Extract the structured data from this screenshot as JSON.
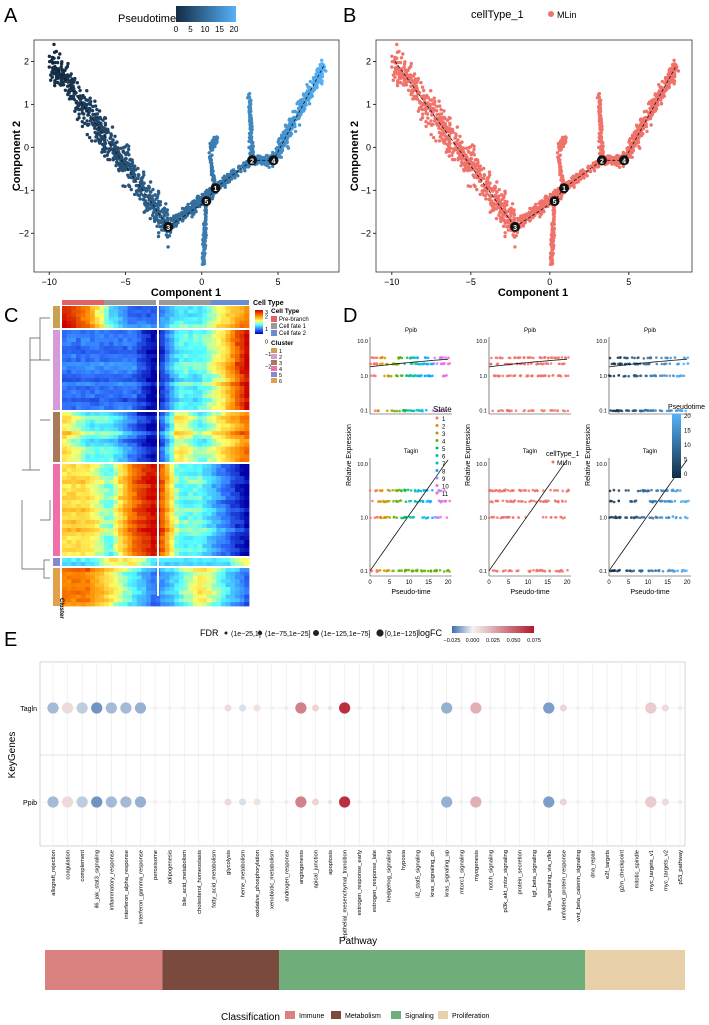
{
  "panels": {
    "A": {
      "letter": "A",
      "legend_title": "Pseudotime",
      "legend_ticks": [
        "0",
        "5",
        "10",
        "15",
        "20"
      ],
      "xlabel": "Component 1",
      "ylabel": "Component 2"
    },
    "B": {
      "letter": "B",
      "legend_title": "cellType_1",
      "legend_entry": "MLin",
      "xlabel": "Component 1",
      "ylabel": "Component 2"
    },
    "C": {
      "letter": "C",
      "celltype_title": "Cell Type",
      "celltype_items": [
        "Pre-branch",
        "Cell fate 1",
        "Cell fate 2"
      ],
      "scale_ticks": [
        "3",
        "2",
        "1",
        "0",
        "−1",
        "−2"
      ],
      "cluster_title": "Cluster",
      "cluster_items": [
        "1",
        "2",
        "3",
        "4",
        "5",
        "6"
      ],
      "cluster_axis": "Cluster"
    },
    "D": {
      "letter": "D",
      "genes": [
        "Ppib",
        "Tagln"
      ],
      "ylabel": "Relative Expression",
      "xlabel": "Pseudo-time",
      "yticks": [
        "10.0",
        "1.0",
        "0.1"
      ],
      "xticks": [
        "0",
        "5",
        "10",
        "15",
        "20"
      ],
      "state_title": "State",
      "state_items": [
        "1",
        "2",
        "3",
        "4",
        "5",
        "6",
        "7",
        "8",
        "9",
        "10",
        "11"
      ],
      "celltype_title": "cellType_1",
      "celltype_entry": "MLin",
      "pseudo_title": "Pseudotime",
      "pseudo_ticks": [
        "20",
        "15",
        "10",
        "5",
        "0"
      ]
    },
    "E": {
      "letter": "E",
      "fdr_title": "FDR",
      "fdr_items": [
        "(1e−25,1]",
        "(1e−75,1e−25]",
        "(1e−125,1e−75]",
        "[0,1e−125]"
      ],
      "logfc_title": "logFC",
      "logfc_ticks": [
        "−0.025",
        "0.000",
        "0.025",
        "0.050",
        "0.075"
      ],
      "ylabel": "KeyGenes",
      "xlabel": "Pathway",
      "genes": [
        "Tagln",
        "Ppib"
      ],
      "classification_title": "Classification",
      "classes": [
        {
          "name": "Immune",
          "color": "#d98280"
        },
        {
          "name": "Metabolism",
          "color": "#7b4a3f"
        },
        {
          "name": "Signaling",
          "color": "#6fae7b"
        },
        {
          "name": "Proliferation",
          "color": "#e8d1a8"
        }
      ]
    }
  },
  "chart_data": [
    {
      "type": "scatter",
      "panel": "A",
      "title": "",
      "xlabel": "Component 1",
      "ylabel": "Component 2",
      "xlim": [
        -11,
        9
      ],
      "ylim": [
        -2.9,
        2.5
      ],
      "xticks": [
        -10,
        -5,
        0,
        5
      ],
      "yticks": [
        -2,
        -1,
        0,
        1,
        2
      ],
      "branch_nodes": [
        {
          "id": "1",
          "x": 0.9,
          "y": -0.95
        },
        {
          "id": "2",
          "x": 3.3,
          "y": -0.3
        },
        {
          "id": "3",
          "x": -2.2,
          "y": -1.85
        },
        {
          "id": "4",
          "x": 4.7,
          "y": -0.3
        },
        {
          "id": "5",
          "x": 0.3,
          "y": -1.25
        }
      ]
    },
    {
      "type": "scatter",
      "panel": "B",
      "title": "",
      "xlabel": "Component 1",
      "ylabel": "Component 2",
      "xlim": [
        -11,
        9
      ],
      "ylim": [
        -2.9,
        2.5
      ],
      "xticks": [
        -10,
        -5,
        0,
        5
      ],
      "yticks": [
        -2,
        -1,
        0,
        1,
        2
      ],
      "series": [
        {
          "name": "MLin",
          "color": "#f0736b"
        }
      ]
    },
    {
      "type": "heatmap",
      "panel": "C",
      "scale": [
        -2,
        3
      ],
      "clusters": 6
    },
    {
      "type": "scatter",
      "panel": "D",
      "genes": [
        "Ppib",
        "Tagln"
      ],
      "xlim": [
        0,
        21
      ],
      "yscale": "log",
      "ylim": [
        0.08,
        13
      ],
      "yticks": [
        0.1,
        1.0,
        10.0
      ],
      "xticks": [
        0,
        5,
        10,
        15,
        20
      ]
    },
    {
      "type": "scatter",
      "panel": "E",
      "title": "",
      "xlabel": "Pathway",
      "ylabel": "KeyGenes",
      "categories": [
        "allograft_rejection",
        "coagulation",
        "complement",
        "il6_jak_stat3_signaling",
        "inflammatory_response",
        "interferon_alpha_response",
        "interferon_gamma_response",
        "peroxisome",
        "adipogenesis",
        "bile_acid_metabolism",
        "cholesterol_homeostasis",
        "fatty_acid_metabolism",
        "glycolysis",
        "heme_metabolism",
        "oxidative_phosphorylation",
        "xenobiotic_metabolism",
        "androgen_response",
        "angiogenesis",
        "apical_junction",
        "apoptosis",
        "epithelial_mesenchymal_transition",
        "estrogen_response_early",
        "estrogen_response_late",
        "hedgehog_signaling",
        "hypoxia",
        "il2_stat5_signaling",
        "kras_signaling_dn",
        "kras_signaling_up",
        "mtorc1_signaling",
        "myogenesis",
        "notch_signaling",
        "pi3k_akt_mtor_signaling",
        "protein_secretion",
        "tgf_beta_signaling",
        "tnfa_signaling_via_nfkb",
        "unfolded_protein_response",
        "wnt_beta_catenin_signaling",
        "dna_repair",
        "e2f_targets",
        "g2m_checkpoint",
        "mitotic_spindle",
        "myc_targets_v1",
        "myc_targets_v2",
        "p53_pathway"
      ],
      "classification": [
        "Immune",
        "Immune",
        "Immune",
        "Immune",
        "Immune",
        "Immune",
        "Immune",
        "Immune",
        "Metabolism",
        "Metabolism",
        "Metabolism",
        "Metabolism",
        "Metabolism",
        "Metabolism",
        "Metabolism",
        "Metabolism",
        "Signaling",
        "Signaling",
        "Signaling",
        "Signaling",
        "Signaling",
        "Signaling",
        "Signaling",
        "Signaling",
        "Signaling",
        "Signaling",
        "Signaling",
        "Signaling",
        "Signaling",
        "Signaling",
        "Signaling",
        "Signaling",
        "Signaling",
        "Signaling",
        "Signaling",
        "Signaling",
        "Signaling",
        "Proliferation",
        "Proliferation",
        "Proliferation",
        "Proliferation",
        "Proliferation",
        "Proliferation",
        "Proliferation"
      ],
      "series": [
        {
          "name": "Tagln",
          "logFC": [
            -0.012,
            0.012,
            -0.008,
            -0.02,
            -0.012,
            -0.012,
            -0.014,
            0.002,
            0.002,
            0.001,
            0.001,
            0.001,
            0.012,
            -0.004,
            0.008,
            0.002,
            0.004,
            0.05,
            0.014,
            0.008,
            0.085,
            0.003,
            0.002,
            0.001,
            0.003,
            0.001,
            0.001,
            -0.014,
            0.002,
            0.03,
            0.001,
            0.001,
            0.001,
            0.001,
            -0.018,
            0.014,
            0.002,
            0.002,
            0.001,
            0.001,
            0.001,
            0.018,
            0.012,
            0.004
          ],
          "fdr_size": [
            3,
            3,
            3,
            3,
            3,
            3,
            3,
            1,
            1,
            1,
            1,
            1,
            2,
            2,
            2,
            1,
            1,
            3,
            2,
            1,
            3,
            1,
            1,
            1,
            1,
            1,
            1,
            3,
            1,
            3,
            1,
            1,
            1,
            1,
            3,
            2,
            1,
            1,
            1,
            1,
            1,
            3,
            2,
            1
          ]
        },
        {
          "name": "Ppib",
          "logFC": [
            -0.012,
            0.012,
            -0.008,
            -0.02,
            -0.012,
            -0.012,
            -0.014,
            0.002,
            0.002,
            0.001,
            0.001,
            0.001,
            0.012,
            -0.004,
            0.008,
            0.002,
            0.004,
            0.05,
            0.014,
            0.008,
            0.085,
            0.003,
            0.002,
            0.001,
            0.003,
            0.001,
            0.001,
            -0.014,
            0.002,
            0.03,
            0.001,
            0.001,
            0.001,
            0.001,
            -0.018,
            0.014,
            0.002,
            0.002,
            0.001,
            0.001,
            0.001,
            0.018,
            0.012,
            0.004
          ],
          "fdr_size": [
            3,
            3,
            3,
            3,
            3,
            3,
            3,
            1,
            1,
            1,
            1,
            1,
            2,
            2,
            2,
            1,
            1,
            3,
            2,
            1,
            3,
            1,
            1,
            1,
            1,
            1,
            1,
            3,
            1,
            3,
            1,
            1,
            1,
            1,
            3,
            2,
            1,
            1,
            1,
            1,
            1,
            3,
            2,
            1
          ]
        }
      ]
    }
  ]
}
